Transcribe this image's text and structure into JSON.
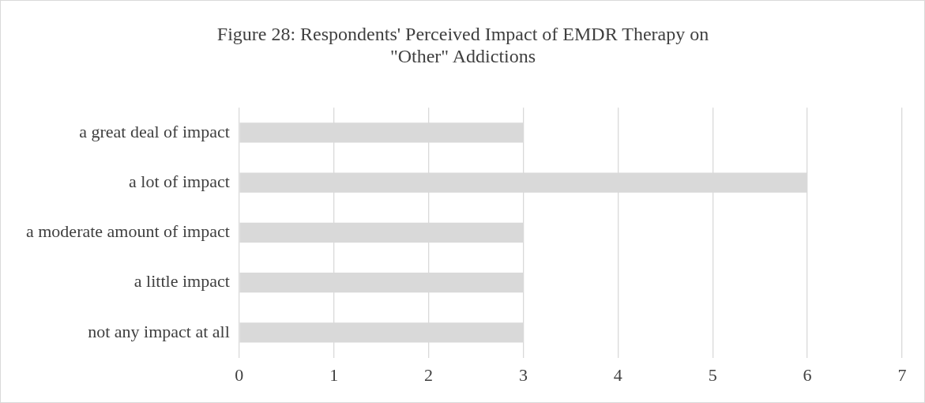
{
  "chart_data": {
    "type": "bar",
    "orientation": "horizontal",
    "title": "Figure 28:  Respondents' Perceived Impact of EMDR Therapy on \"Other\" Addictions",
    "categories": [
      "a great deal of impact",
      "a lot of impact",
      "a moderate amount of impact",
      "a little impact",
      "not any impact at all"
    ],
    "values": [
      3,
      6,
      3,
      3,
      3
    ],
    "color": "#d9d9d9",
    "xlim": [
      0,
      7
    ],
    "xticks": [
      0,
      1,
      2,
      3,
      4,
      5,
      6,
      7
    ],
    "grid": "x",
    "legend": false
  }
}
